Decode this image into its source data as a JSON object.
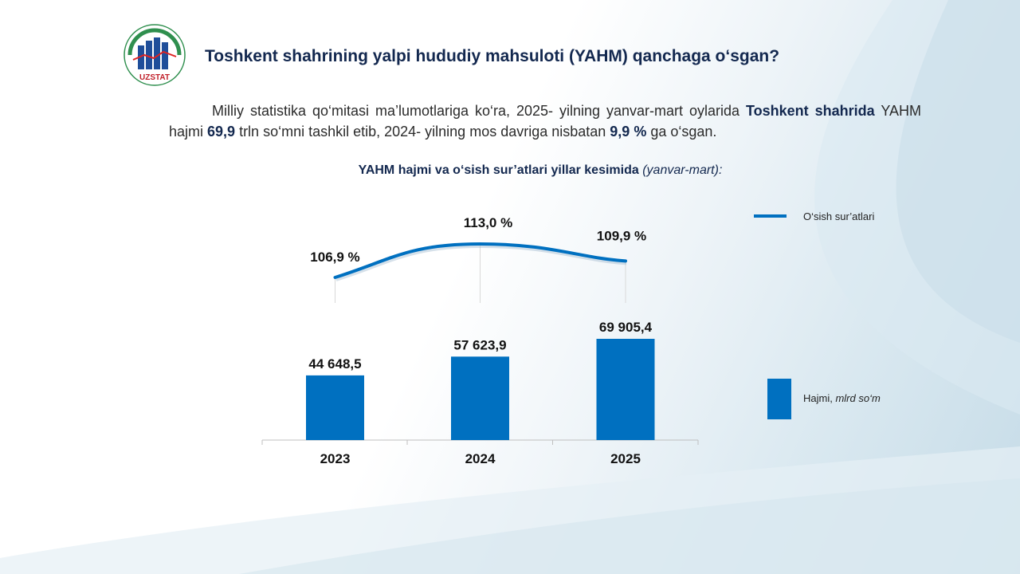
{
  "header": {
    "logo_text": "UZSTAT",
    "title": "Toshkent shahrining yalpi hududiy mahsuloti (YAHM) qanchaga o‘sgan?"
  },
  "paragraph": {
    "part1": "Milliy statistika qo‘mitasi ma’lumotlariga ko‘ra, 2025- yilning yanvar-mart oylarida ",
    "bold1": "Toshkent shahrida",
    "part2": " YAHM hajmi ",
    "bold2": "69,9",
    "part3": " trln so‘mni tashkil etib, 2024- yilning mos davriga nisbatan ",
    "bold3": "9,9 %",
    "part4": " ga o‘sgan."
  },
  "chart_title": {
    "main": "YAHM hajmi va o‘sish sur’atlari yillar kesimida",
    "period": "(yanvar-mart):"
  },
  "colors": {
    "bar": "#0070c0",
    "line": "#0070c0",
    "title": "#13284f"
  },
  "chart_data": {
    "type": "bar+line",
    "categories": [
      "2023",
      "2024",
      "2025"
    ],
    "series": [
      {
        "name": "Hajmi, mlrd so‘m",
        "kind": "bar",
        "values": [
          44648.5,
          57623.9,
          69905.4
        ],
        "labels": [
          "44 648,5",
          "57 623,9",
          "69 905,4"
        ]
      },
      {
        "name": "O‘sish sur’atlari",
        "kind": "line",
        "values": [
          106.9,
          113.0,
          109.9
        ],
        "labels": [
          "106,9 %",
          "113,0 %",
          "109,9 %"
        ]
      }
    ],
    "legend": {
      "line_label": "O‘sish sur’atlari",
      "bar_label_main": "Hajmi, ",
      "bar_label_unit": "mlrd so‘m"
    },
    "legend_position": "right"
  }
}
